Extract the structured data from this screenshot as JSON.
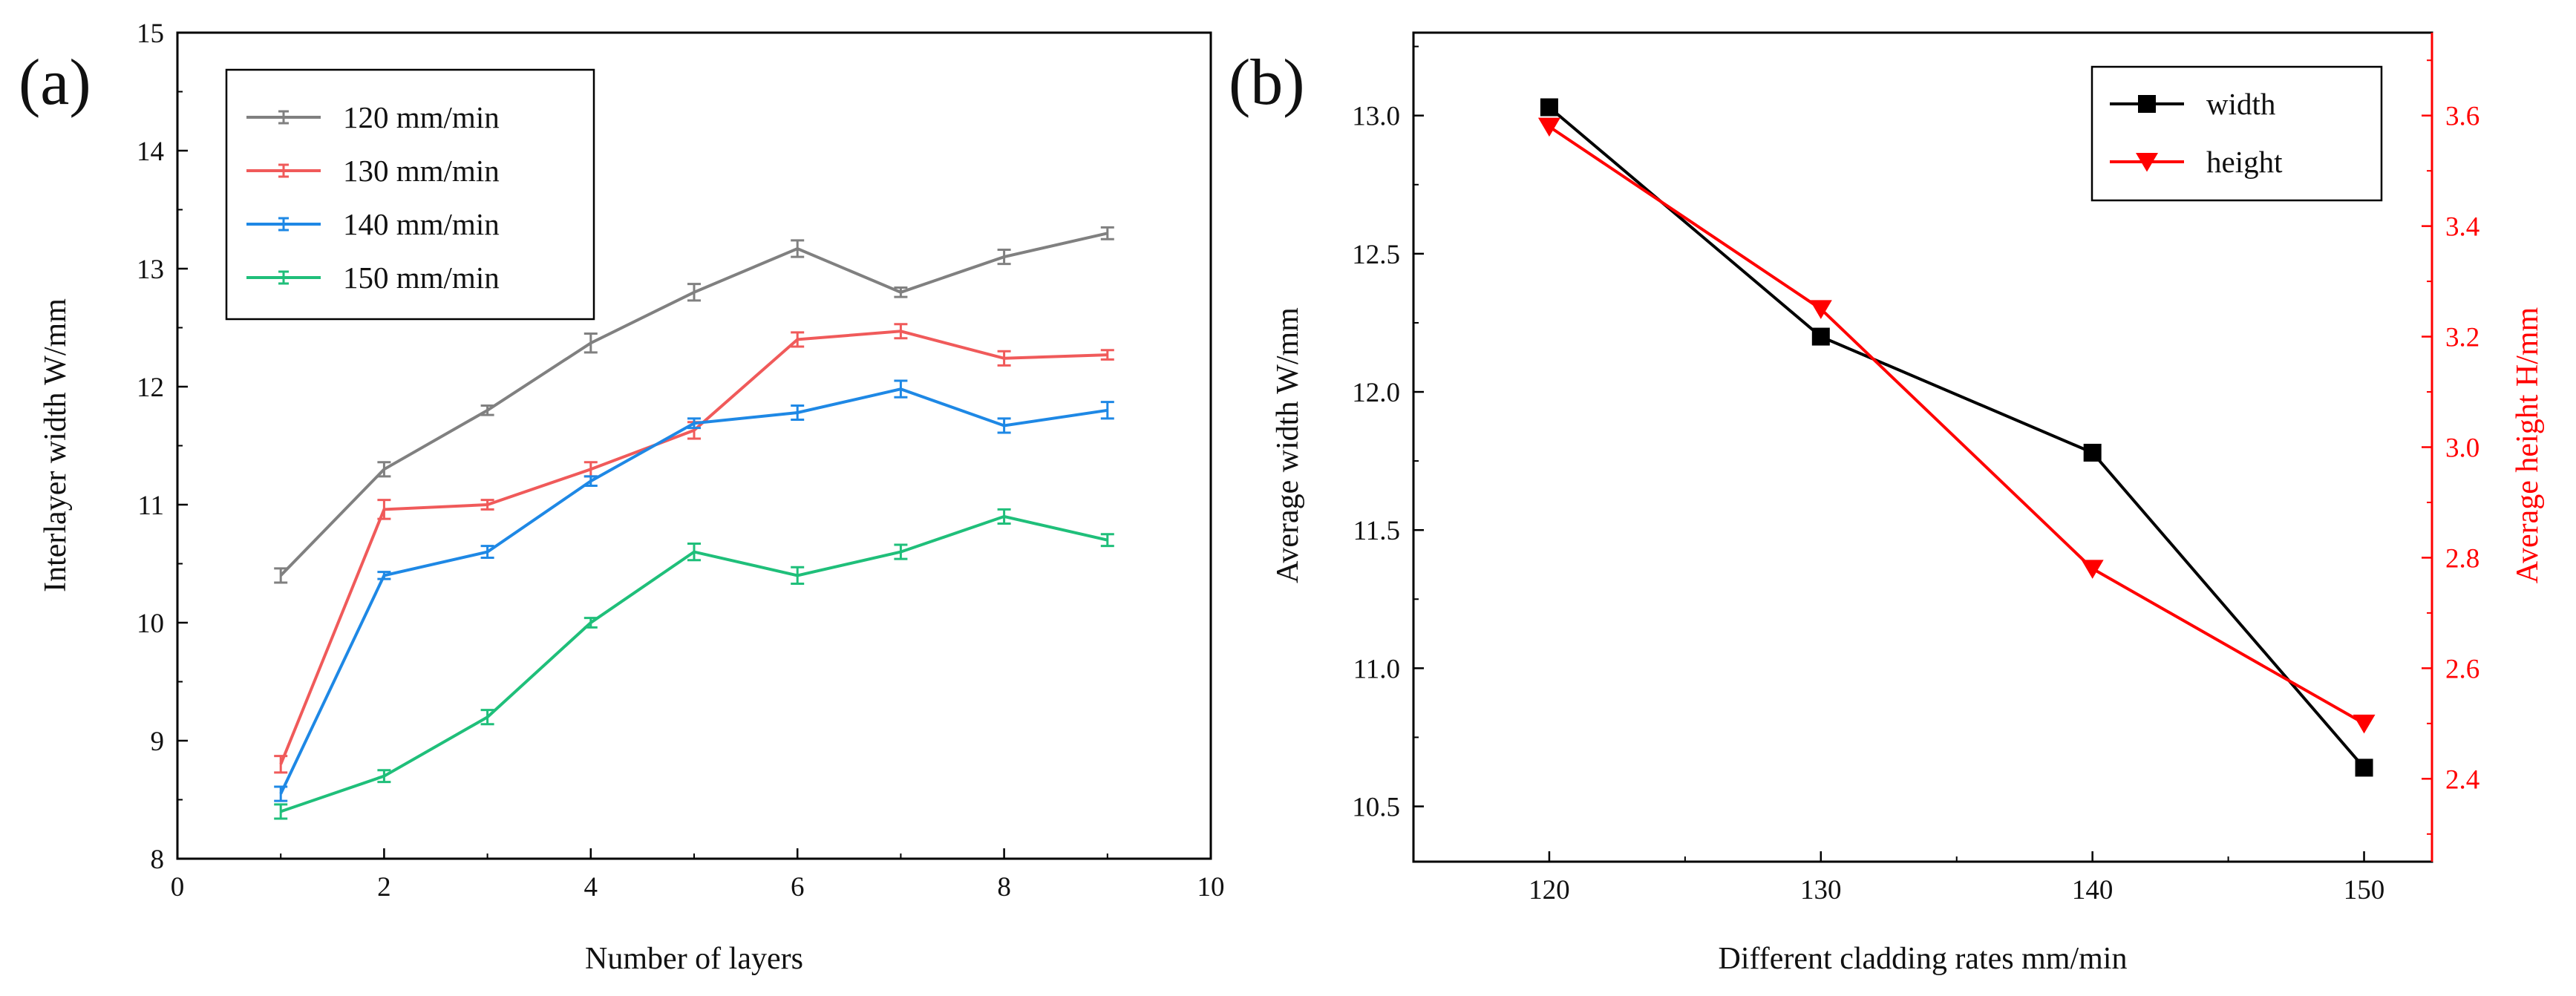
{
  "chart_data": [
    {
      "panel_label": "(a)",
      "type": "line",
      "xlabel": "Number of layers",
      "ylabel": "Interlayer width W/mm",
      "xlim": [
        0,
        10
      ],
      "ylim": [
        8,
        15
      ],
      "xticks": [
        "0",
        "2",
        "4",
        "6",
        "8",
        "10"
      ],
      "yticks": [
        "8",
        "9",
        "10",
        "11",
        "12",
        "13",
        "14",
        "15"
      ],
      "legend_position": "top-left",
      "x": [
        1,
        2,
        3,
        4,
        5,
        6,
        7,
        8,
        9
      ],
      "series": [
        {
          "name": "120 mm/min",
          "color": "#808080",
          "values": [
            10.4,
            11.3,
            11.8,
            12.37,
            12.8,
            13.17,
            12.8,
            13.1,
            13.3
          ],
          "errors": [
            0.06,
            0.06,
            0.04,
            0.08,
            0.07,
            0.07,
            0.04,
            0.06,
            0.05
          ]
        },
        {
          "name": "130 mm/min",
          "color": "#f05a5a",
          "values": [
            8.8,
            10.96,
            11.0,
            11.3,
            11.63,
            12.4,
            12.47,
            12.24,
            12.27
          ],
          "errors": [
            0.07,
            0.08,
            0.04,
            0.06,
            0.07,
            0.06,
            0.06,
            0.06,
            0.04
          ]
        },
        {
          "name": "140 mm/min",
          "color": "#1e88e5",
          "values": [
            8.55,
            10.4,
            10.6,
            11.2,
            11.69,
            11.78,
            11.98,
            11.67,
            11.8
          ],
          "errors": [
            0.06,
            0.03,
            0.05,
            0.04,
            0.04,
            0.06,
            0.07,
            0.06,
            0.07
          ]
        },
        {
          "name": "150 mm/min",
          "color": "#1fbf7a",
          "values": [
            8.4,
            8.7,
            9.2,
            10.0,
            10.6,
            10.4,
            10.6,
            10.9,
            10.7
          ],
          "errors": [
            0.06,
            0.05,
            0.06,
            0.04,
            0.07,
            0.07,
            0.06,
            0.06,
            0.05
          ]
        }
      ]
    },
    {
      "panel_label": "(b)",
      "type": "line",
      "xlabel": "Different cladding rates mm/min",
      "ylabel": "Average width W/mm",
      "ylabel_right": "Average height H/mm",
      "xlim": [
        115,
        152.5
      ],
      "ylim": [
        10.3,
        13.3
      ],
      "ylim_right": [
        2.25,
        3.75
      ],
      "xticks": [
        "120",
        "130",
        "140",
        "150"
      ],
      "yticks": [
        "10.5",
        "11.0",
        "11.5",
        "12.0",
        "12.5",
        "13.0"
      ],
      "yticks_right": [
        "2.4",
        "2.6",
        "2.8",
        "3.0",
        "3.2",
        "3.4",
        "3.6"
      ],
      "legend_position": "top-right",
      "x": [
        120,
        130,
        140,
        150
      ],
      "series": [
        {
          "name": "width",
          "axis": "left",
          "marker": "square",
          "color": "#000000",
          "values": [
            13.03,
            12.2,
            11.78,
            10.64
          ]
        },
        {
          "name": "height",
          "axis": "right",
          "marker": "triangle-down",
          "color": "#ff0000",
          "values": [
            3.58,
            3.25,
            2.78,
            2.5
          ]
        }
      ]
    }
  ]
}
